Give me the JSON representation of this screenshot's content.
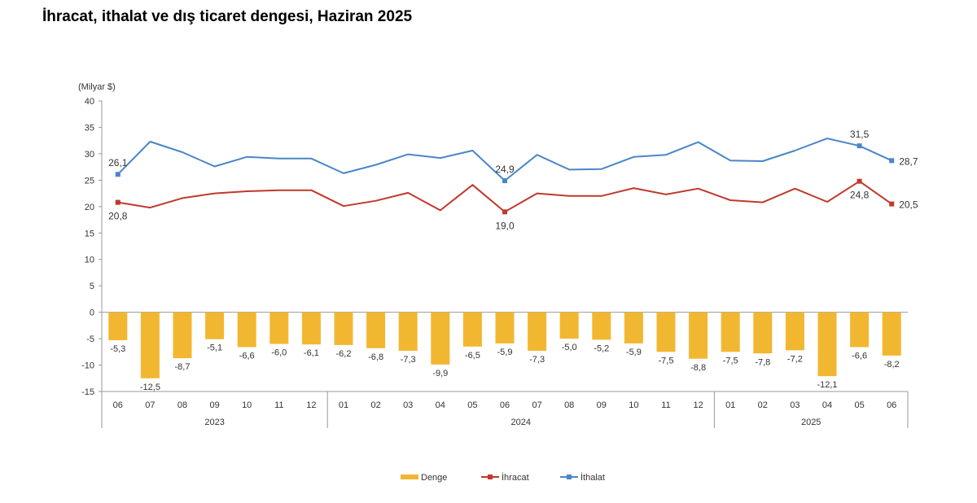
{
  "page_title": "İhracat, ithalat ve dış ticaret dengesi, Haziran 2025",
  "chart_data": {
    "type": "bar",
    "ylabel": "(Milyar $)",
    "ylim": [
      -15,
      40
    ],
    "ytick_step": 5,
    "ytick_labels": [
      "40",
      "35",
      "30",
      "25",
      "20",
      "15",
      "10",
      "5",
      "0",
      "-5",
      "-10",
      "-15"
    ],
    "categories": [
      "06",
      "07",
      "08",
      "09",
      "10",
      "11",
      "12",
      "01",
      "02",
      "03",
      "04",
      "05",
      "06",
      "07",
      "08",
      "09",
      "10",
      "11",
      "12",
      "01",
      "02",
      "03",
      "04",
      "05",
      "06"
    ],
    "year_groups": [
      {
        "label": "2023",
        "start": 0,
        "end": 6
      },
      {
        "label": "2024",
        "start": 7,
        "end": 18
      },
      {
        "label": "2025",
        "start": 19,
        "end": 24
      }
    ],
    "series": [
      {
        "name": "Denge",
        "kind": "bar",
        "color": "#F2B731",
        "values": [
          -5.3,
          -12.5,
          -8.7,
          -5.1,
          -6.6,
          -6.0,
          -6.1,
          -6.2,
          -6.8,
          -7.3,
          -9.9,
          -6.5,
          -5.9,
          -7.3,
          -5.0,
          -5.2,
          -5.9,
          -7.5,
          -8.8,
          -7.5,
          -7.8,
          -7.2,
          -12.1,
          -6.6,
          -8.2
        ],
        "labels": [
          "-5,3",
          "-12,5",
          "-8,7",
          "-5,1",
          "-6,6",
          "-6,0",
          "-6,1",
          "-6,2",
          "-6,8",
          "-7,3",
          "-9,9",
          "-6,5",
          "-5,9",
          "-7,3",
          "-5,0",
          "-5,2",
          "-5,9",
          "-7,5",
          "-8,8",
          "-7,5",
          "-7,8",
          "-7,2",
          "-12,1",
          "-6,6",
          "-8,2"
        ]
      },
      {
        "name": "İhracat",
        "kind": "line",
        "color": "#C0392B",
        "values": [
          20.8,
          19.8,
          21.6,
          22.5,
          22.9,
          23.1,
          23.1,
          20.1,
          21.1,
          22.6,
          19.3,
          24.1,
          19.0,
          22.5,
          22.0,
          22.0,
          23.5,
          22.3,
          23.4,
          21.2,
          20.8,
          23.4,
          20.9,
          24.8,
          20.5
        ],
        "markers": [
          {
            "index": 0,
            "label": "20,8",
            "pos": "below"
          },
          {
            "index": 12,
            "label": "19,0",
            "pos": "below"
          },
          {
            "index": 23,
            "label": "24,8",
            "pos": "below"
          },
          {
            "index": 24,
            "label": "20,5",
            "pos": "right"
          }
        ]
      },
      {
        "name": "İthalat",
        "kind": "line",
        "color": "#4A86C8",
        "values": [
          26.1,
          32.3,
          30.3,
          27.6,
          29.4,
          29.1,
          29.1,
          26.3,
          27.9,
          29.9,
          29.2,
          30.6,
          24.9,
          29.8,
          27.0,
          27.1,
          29.4,
          29.8,
          32.2,
          28.7,
          28.6,
          30.6,
          32.9,
          31.5,
          28.7
        ],
        "markers": [
          {
            "index": 0,
            "label": "26,1",
            "pos": "above"
          },
          {
            "index": 12,
            "label": "24,9",
            "pos": "above"
          },
          {
            "index": 23,
            "label": "31,5",
            "pos": "above"
          },
          {
            "index": 24,
            "label": "28,7",
            "pos": "right"
          }
        ]
      }
    ],
    "legend": {
      "placement": "bottom-center"
    }
  }
}
